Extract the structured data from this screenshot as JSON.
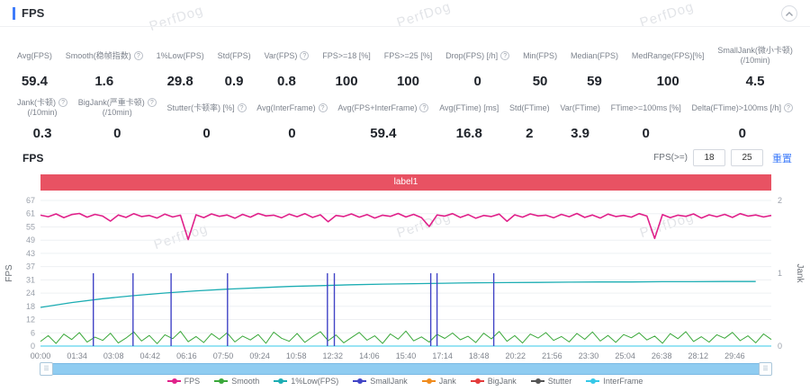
{
  "header": {
    "title": "FPS"
  },
  "watermark": "PerfDog",
  "metrics": {
    "row1": [
      {
        "label": "Avg(FPS)",
        "value": "59.4"
      },
      {
        "label": "Smooth(稳帧指数)",
        "help": true,
        "value": "1.6"
      },
      {
        "label": "1%Low(FPS)",
        "value": "29.8"
      },
      {
        "label": "Std(FPS)",
        "value": "0.9"
      },
      {
        "label": "Var(FPS)",
        "help": true,
        "value": "0.8"
      },
      {
        "label": "FPS>=18 [%]",
        "value": "100"
      },
      {
        "label": "FPS>=25 [%]",
        "value": "100"
      },
      {
        "label": "Drop(FPS) [/h]",
        "help": true,
        "value": "0"
      },
      {
        "label": "Min(FPS)",
        "value": "50"
      },
      {
        "label": "Median(FPS)",
        "value": "59"
      },
      {
        "label": "MedRange(FPS)[%]",
        "value": "100"
      },
      {
        "label": "SmallJank(微小卡顿)",
        "label2": "(/10min)",
        "value": "4.5"
      }
    ],
    "row2": [
      {
        "label": "Jank(卡顿)",
        "label2": "(/10min)",
        "help": true,
        "value": "0.3"
      },
      {
        "label": "BigJank(严重卡顿)",
        "label2": "(/10min)",
        "help": true,
        "value": "0"
      },
      {
        "label": "Stutter(卡顿率) [%]",
        "help": true,
        "value": "0"
      },
      {
        "label": "Avg(InterFrame)",
        "help": true,
        "value": "0"
      },
      {
        "label": "Avg(FPS+InterFrame)",
        "help": true,
        "value": "59.4"
      },
      {
        "label": "Avg(FTime) [ms]",
        "value": "16.8"
      },
      {
        "label": "Std(FTime)",
        "value": "2"
      },
      {
        "label": "Var(FTime)",
        "value": "3.9"
      },
      {
        "label": "FTime>=100ms [%]",
        "value": "0"
      },
      {
        "label": "Delta(FTime)>100ms [/h]",
        "help": true,
        "value": "0"
      }
    ]
  },
  "chart_header": {
    "title": "FPS",
    "filter_label": "FPS(>=)",
    "input1": "18",
    "input2": "25",
    "reset_label": "重置"
  },
  "banner": {
    "label": "label1",
    "color": "#e85263"
  },
  "chart_data": {
    "type": "line",
    "title": "label1",
    "x_axis": {
      "labels": [
        "00:00",
        "01:34",
        "03:08",
        "04:42",
        "06:16",
        "07:50",
        "09:24",
        "10:58",
        "12:32",
        "14:06",
        "15:40",
        "17:14",
        "18:48",
        "20:22",
        "21:56",
        "23:30",
        "25:04",
        "26:38",
        "28:12",
        "29:46"
      ],
      "tick_seconds": [
        0,
        94,
        188,
        282,
        376,
        470,
        564,
        658,
        752,
        846,
        940,
        1034,
        1128,
        1222,
        1316,
        1410,
        1504,
        1598,
        1692,
        1786
      ],
      "max_seconds": 1880
    },
    "y_left": {
      "name": "FPS",
      "ticks": [
        0,
        6,
        12,
        18,
        24,
        31,
        37,
        43,
        49,
        55,
        61,
        67
      ],
      "max": 67
    },
    "y_right": {
      "name": "Jank",
      "ticks": [
        0,
        1,
        2
      ],
      "max": 2
    },
    "grid": true,
    "legend_position": "bottom",
    "series": [
      {
        "name": "InterFrame",
        "color": "#35c8e8",
        "axis": "left",
        "step": 940,
        "values": [
          0,
          0,
          0
        ]
      },
      {
        "name": "Smooth",
        "color": "#3aa83a",
        "axis": "left",
        "step": 20,
        "values": [
          2.1,
          4.8,
          1.2,
          5.5,
          3,
          6.2,
          1.8,
          4.1,
          2.6,
          5.9,
          1.4,
          3.7,
          6.5,
          2.3,
          4.9,
          1.1,
          5.2,
          3.4,
          6.8,
          2,
          4.4,
          1.6,
          5.7,
          3.1,
          6.1,
          1.9,
          4.6,
          2.8,
          5.3,
          1.3,
          6.4,
          3.6,
          2.2,
          5.8,
          1.7,
          4.3,
          6.6,
          2.5,
          5.1,
          1.5,
          3.9,
          6.3,
          2.7,
          4.7,
          1.2,
          5.6,
          3.2,
          6.9,
          2.4,
          4.2,
          1.8,
          5.4,
          3.5,
          6,
          2.9,
          4.5,
          1.6,
          5.9,
          3.3,
          6.7,
          2.2,
          4.8,
          1.4,
          5.5,
          3.7,
          6.2,
          2.6,
          4.4,
          1.9,
          5.8,
          3.1,
          6.5,
          2.3,
          4.9,
          1.7,
          5.3,
          3.8,
          6.1,
          2.8,
          4.6,
          1.3,
          5.7,
          3.4,
          6.6,
          2.1,
          4.3,
          1.8,
          5.2,
          3.6,
          6.3,
          2.5,
          4.7,
          1.5,
          5.6,
          3
        ]
      },
      {
        "name": "1%Low(FPS)",
        "color": "#1cadb3",
        "axis": "left",
        "step": 80,
        "values": [
          17.8,
          20,
          21.8,
          23.2,
          24.4,
          25.4,
          26.2,
          26.8,
          27.4,
          27.8,
          28.2,
          28.5,
          28.7,
          28.9,
          29.1,
          29.2,
          29.3,
          29.4,
          29.5,
          29.5,
          29.6,
          29.6,
          29.7,
          29.7
        ]
      },
      {
        "name": "SmallJank",
        "color": "#4144c6",
        "axis": "right",
        "impulse": true,
        "events": [
          {
            "t": 136,
            "v": 1
          },
          {
            "t": 238,
            "v": 1
          },
          {
            "t": 336,
            "v": 1
          },
          {
            "t": 481,
            "v": 1
          },
          {
            "t": 738,
            "v": 1
          },
          {
            "t": 756,
            "v": 1
          },
          {
            "t": 1004,
            "v": 1
          },
          {
            "t": 1020,
            "v": 1
          },
          {
            "t": 1166,
            "v": 1
          }
        ]
      },
      {
        "name": "Jank",
        "color": "#f08c1e",
        "axis": "right",
        "impulse": true,
        "events": []
      },
      {
        "name": "BigJank",
        "color": "#e33b3b",
        "axis": "right",
        "impulse": true,
        "events": []
      },
      {
        "name": "Stutter",
        "color": "#555555",
        "axis": "left",
        "step": 20,
        "values": []
      },
      {
        "name": "FPS",
        "color": "#e0218a",
        "axis": "left",
        "step": 20,
        "values": [
          60.2,
          59.5,
          60.8,
          59.1,
          60.5,
          61,
          59.3,
          60.6,
          59.8,
          57.5,
          60.3,
          59.2,
          60.9,
          59.6,
          60.1,
          58.9,
          60.7,
          59.4,
          60.2,
          49,
          60.4,
          59.1,
          60.8,
          59.7,
          60.3,
          58.8,
          60.6,
          59.3,
          61,
          59.9,
          60.2,
          59,
          60.7,
          59.5,
          60.9,
          59.2,
          60.4,
          57.2,
          60.1,
          59.6,
          60.8,
          59.3,
          60.5,
          58.9,
          60.2,
          59.7,
          61,
          59.4,
          60.6,
          59.1,
          55,
          60.3,
          59.8,
          60.9,
          59.2,
          60.5,
          58.8,
          60.1,
          59.6,
          60.7,
          57.4,
          60.4,
          59.3,
          60.8,
          59.9,
          60.2,
          59,
          60.6,
          59.5,
          61,
          59.2,
          60.3,
          58.9,
          60.7,
          59.6,
          60.1,
          59.3,
          60.9,
          59.8,
          49.5,
          60.5,
          59.1,
          60.2,
          59.7,
          60.8,
          58.9,
          60.4,
          59.5,
          60.6,
          59.2,
          60.9,
          59.8,
          60.3,
          59.4,
          60.1
        ]
      }
    ],
    "legend": [
      {
        "name": "FPS",
        "color": "#e0218a"
      },
      {
        "name": "Smooth",
        "color": "#3aa83a"
      },
      {
        "name": "1%Low(FPS)",
        "color": "#1cadb3"
      },
      {
        "name": "SmallJank",
        "color": "#4144c6"
      },
      {
        "name": "Jank",
        "color": "#f08c1e"
      },
      {
        "name": "BigJank",
        "color": "#e33b3b"
      },
      {
        "name": "Stutter",
        "color": "#555555"
      },
      {
        "name": "InterFrame",
        "color": "#35c8e8"
      }
    ]
  }
}
